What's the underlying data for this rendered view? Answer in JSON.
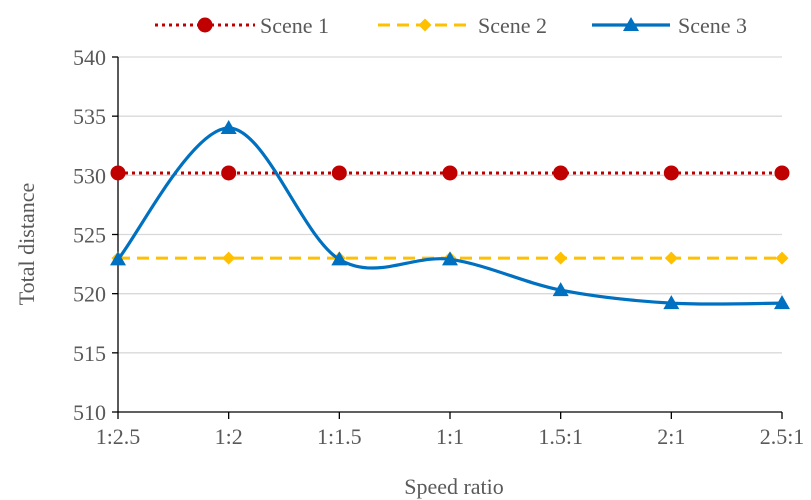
{
  "chart_data": {
    "type": "line",
    "title": "",
    "xlabel": "Speed ratio",
    "ylabel": "Total distance",
    "categories": [
      "1:2.5",
      "1:2",
      "1:1.5",
      "1:1",
      "1.5:1",
      "2:1",
      "2.5:1"
    ],
    "ylim": [
      510,
      540
    ],
    "yticks": [
      510,
      515,
      520,
      525,
      530,
      535,
      540
    ],
    "grid": true,
    "legend_position": "top",
    "series": [
      {
        "name": "Scene 1",
        "values": [
          530.2,
          530.2,
          530.2,
          530.2,
          530.2,
          530.2,
          530.2
        ],
        "color": "#C00000",
        "marker": "circle",
        "line_style": "dotted",
        "smooth": false
      },
      {
        "name": "Scene 2",
        "values": [
          523.0,
          523.0,
          523.0,
          523.0,
          523.0,
          523.0,
          523.0
        ],
        "color": "#FFC000",
        "marker": "diamond",
        "line_style": "dashed",
        "smooth": false
      },
      {
        "name": "Scene 3",
        "values": [
          522.9,
          534.0,
          522.9,
          522.9,
          520.3,
          519.2,
          519.2
        ],
        "color": "#0070C0",
        "marker": "triangle",
        "line_style": "solid",
        "smooth": true
      }
    ]
  }
}
